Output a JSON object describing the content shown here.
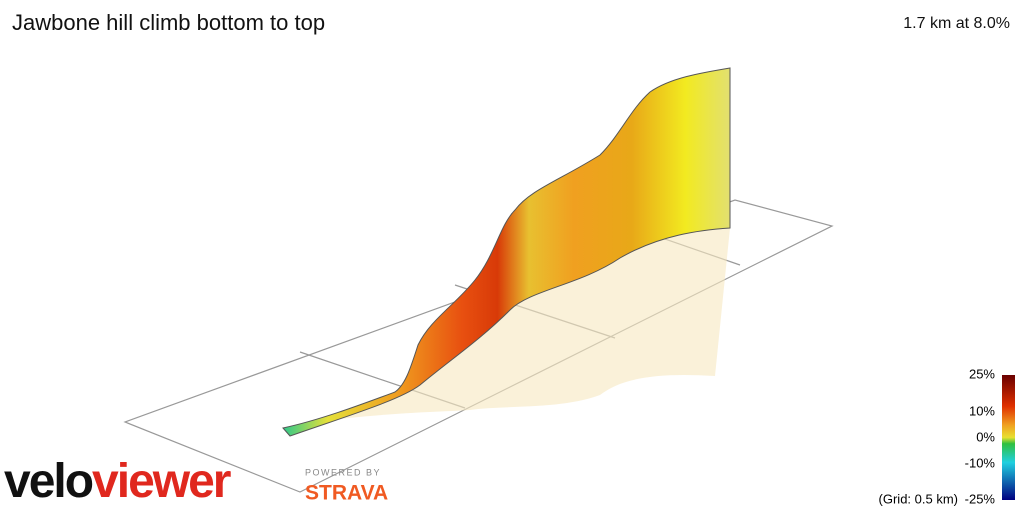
{
  "header": {
    "title": "Jawbone hill climb bottom to top",
    "stats": "1.7 km at 8.0%"
  },
  "legend": {
    "labels": [
      "25%",
      "10%",
      "0%",
      "-10%",
      "-25%"
    ],
    "grid_note": "(Grid: 0.5 km)"
  },
  "logo": {
    "velo": "velo",
    "viewer": "viewer",
    "powered_by": "POWERED BY",
    "strava": "STRAVA"
  }
}
